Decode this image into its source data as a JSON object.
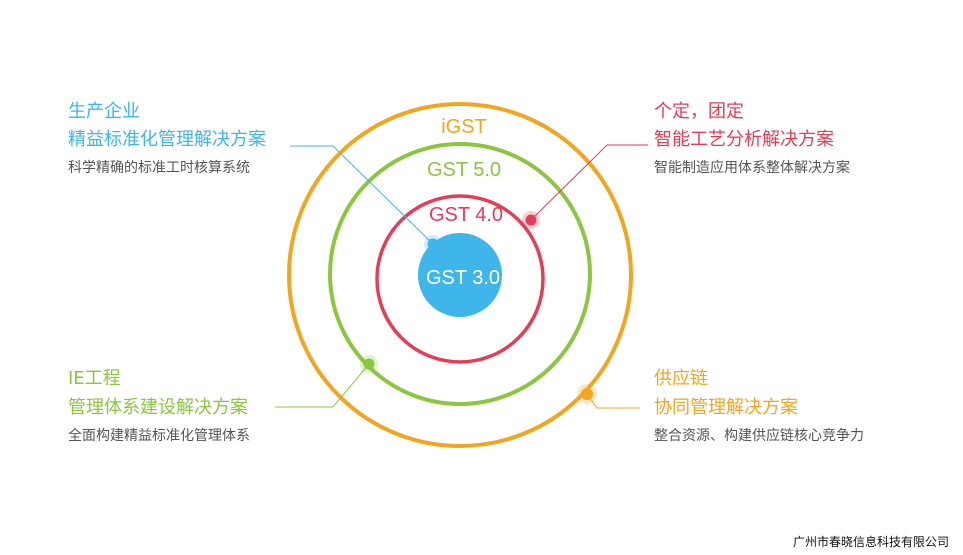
{
  "colors": {
    "blue": "#3fb6ea",
    "red": "#e23e57",
    "green": "#8cc63f",
    "orange": "#f2a51f",
    "subtext": "#555555"
  },
  "rings": {
    "outer": "iGST",
    "second": "GST 5.0",
    "third": "GST 4.0",
    "core": "GST 3.0"
  },
  "callouts": {
    "top_left": {
      "title": "生产企业",
      "subtitle": "精益标准化管理解决方案",
      "desc": "科学精确的标准工时核算系统"
    },
    "top_right": {
      "title": "个定，团定",
      "subtitle": "智能工艺分析解决方案",
      "desc": "智能制造应用体系整体解决方案"
    },
    "bottom_left": {
      "title": "IE工程",
      "subtitle": "管理体系建设解决方案",
      "desc": "全面构建精益标准化管理体系"
    },
    "bottom_right": {
      "title": "供应链",
      "subtitle": "协同管理解决方案",
      "desc": "整合资源、构建供应链核心竞争力"
    }
  },
  "footer": "广州市春晓信息科技有限公司"
}
